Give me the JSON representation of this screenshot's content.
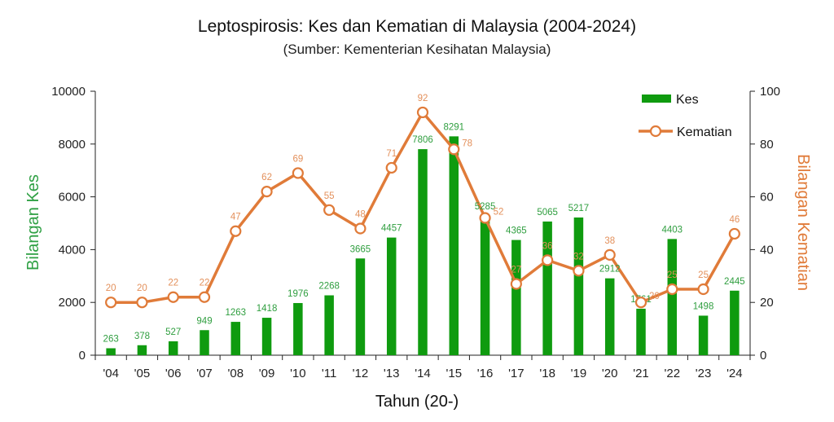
{
  "chart_data": {
    "type": "bar",
    "title": "Leptospirosis: Kes dan Kematian di Malaysia (2004-2024)",
    "subtitle": "(Sumber: Kementerian Kesihatan Malaysia)",
    "xlabel": "Tahun (20-)",
    "ylabel": "Bilangan Kes",
    "y2label": "Bilangan Kematian",
    "categories": [
      "'04",
      "'05",
      "'06",
      "'07",
      "'08",
      "'09",
      "'10",
      "'11",
      "'12",
      "'13",
      "'14",
      "'15",
      "'16",
      "'17",
      "'18",
      "'19",
      "'20",
      "'21",
      "'22",
      "'23",
      "'24"
    ],
    "ylim": [
      0,
      10000
    ],
    "y_ticks": [
      "0",
      "2000",
      "4000",
      "6000",
      "8000",
      "10000"
    ],
    "y2lim": [
      0,
      100
    ],
    "y2_ticks": [
      "0",
      "20",
      "40",
      "60",
      "80",
      "100"
    ],
    "legend_position": "top-right",
    "grid": false,
    "series": [
      {
        "name": "Kes",
        "type": "bar",
        "axis": "left",
        "color": "#0f9b0f",
        "label_color": "#2f9e3f",
        "values": [
          263,
          378,
          527,
          949,
          1263,
          1418,
          1976,
          2268,
          3665,
          4457,
          7806,
          8291,
          5285,
          4365,
          5065,
          5217,
          2912,
          1761,
          4403,
          1498,
          2445
        ],
        "labels": [
          "263",
          "378",
          "527",
          "949",
          "1263",
          "1418",
          "1976",
          "2268",
          "3665",
          "4457",
          "7806",
          "8291",
          "5285",
          "4365",
          "5065",
          "5217",
          "2912",
          "1761",
          "4403",
          "1498",
          "2445"
        ]
      },
      {
        "name": "Kematian",
        "type": "line",
        "axis": "right",
        "color": "#e07b39",
        "label_color": "#e3905b",
        "values": [
          20,
          20,
          22,
          22,
          47,
          62,
          69,
          55,
          48,
          71,
          92,
          78,
          52,
          27,
          36,
          32,
          38,
          20,
          25,
          25,
          46
        ],
        "labels": [
          "20",
          "20",
          "22",
          "22",
          "47",
          "62",
          "69",
          "55",
          "48",
          "71",
          "92",
          "78",
          "52",
          "27",
          "36",
          "32",
          "38",
          "20",
          "25",
          "25",
          "46"
        ]
      }
    ]
  }
}
